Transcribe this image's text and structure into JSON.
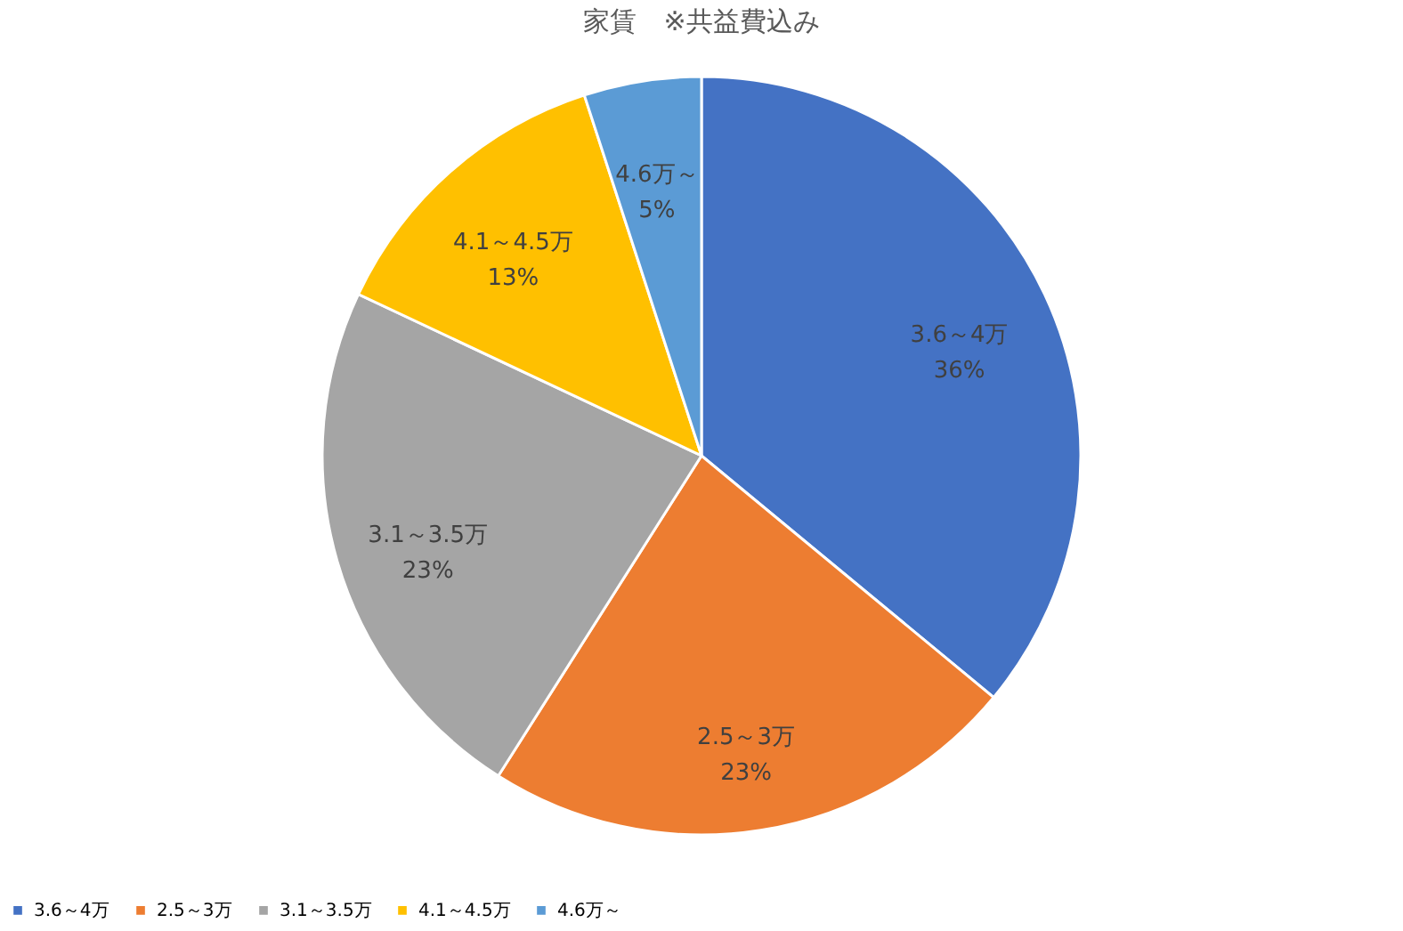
{
  "chart_data": {
    "type": "pie",
    "title": "家賃　※共益費込み",
    "categories": [
      "3.6～4万",
      "2.5～3万",
      "3.1～3.5万",
      "4.1～4.5万",
      "4.6万～"
    ],
    "values": [
      36,
      23,
      23,
      13,
      5
    ],
    "value_labels": [
      "36%",
      "23%",
      "23%",
      "13%",
      "5%"
    ],
    "colors": [
      "#4472c4",
      "#ed7d31",
      "#a5a5a5",
      "#ffc000",
      "#5b9bd5"
    ],
    "legend": "bottom"
  }
}
